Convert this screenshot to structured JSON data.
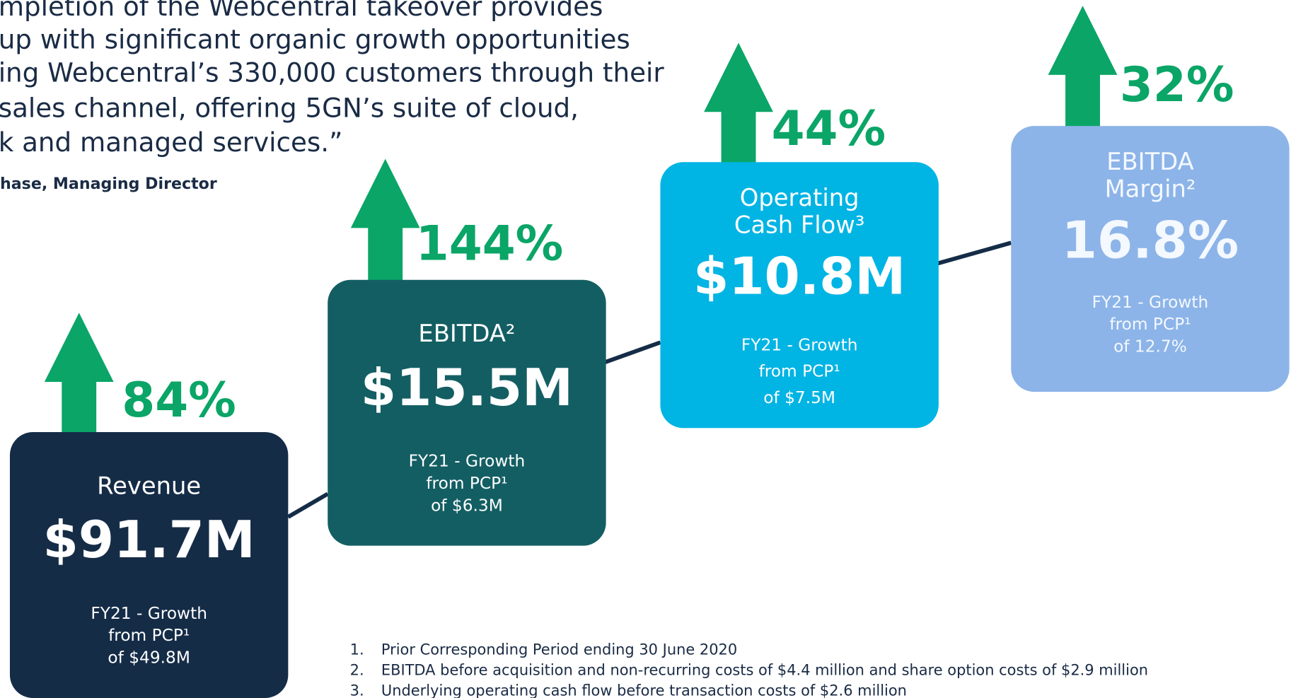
{
  "quote": {
    "lines": [
      "mpletion of the Webcentral takeover provides",
      "up with significant organic growth opportunities",
      "ing Webcentral’s 330,000 customers through their",
      "sales channel, offering 5GN’s suite of cloud,",
      "k and managed services.”"
    ],
    "attribution": "hase, Managing Director"
  },
  "cards": [
    {
      "growth": "84%",
      "title_lines": [
        "Revenue"
      ],
      "value": "$91.7M",
      "detail_lines": [
        "FY21 - Growth",
        "from PCP¹",
        "of $49.8M"
      ]
    },
    {
      "growth": "144%",
      "title_lines": [
        "EBITDA²"
      ],
      "value": "$15.5M",
      "detail_lines": [
        "FY21 - Growth",
        "from PCP¹",
        "of $6.3M"
      ]
    },
    {
      "growth": "44%",
      "title_lines": [
        "Operating",
        "Cash Flow³"
      ],
      "value": "$10.8M",
      "detail_lines": [
        "FY21 - Growth",
        "from PCP¹",
        "of $7.5M"
      ]
    },
    {
      "growth": "32%",
      "title_lines": [
        "EBITDA",
        "Margin²"
      ],
      "value": "16.8%",
      "detail_lines": [
        "FY21 - Growth",
        "from PCP¹",
        "of 12.7%"
      ]
    }
  ],
  "footnotes": [
    {
      "number": "1.",
      "text": "Prior Corresponding Period ending 30 June 2020"
    },
    {
      "number": "2.",
      "text": "EBITDA before acquisition and non-recurring costs of $4.4 million and share option costs of $2.9 million"
    },
    {
      "number": "3.",
      "text": "Underlying operating cash flow before transaction costs of $2.6 million"
    }
  ]
}
